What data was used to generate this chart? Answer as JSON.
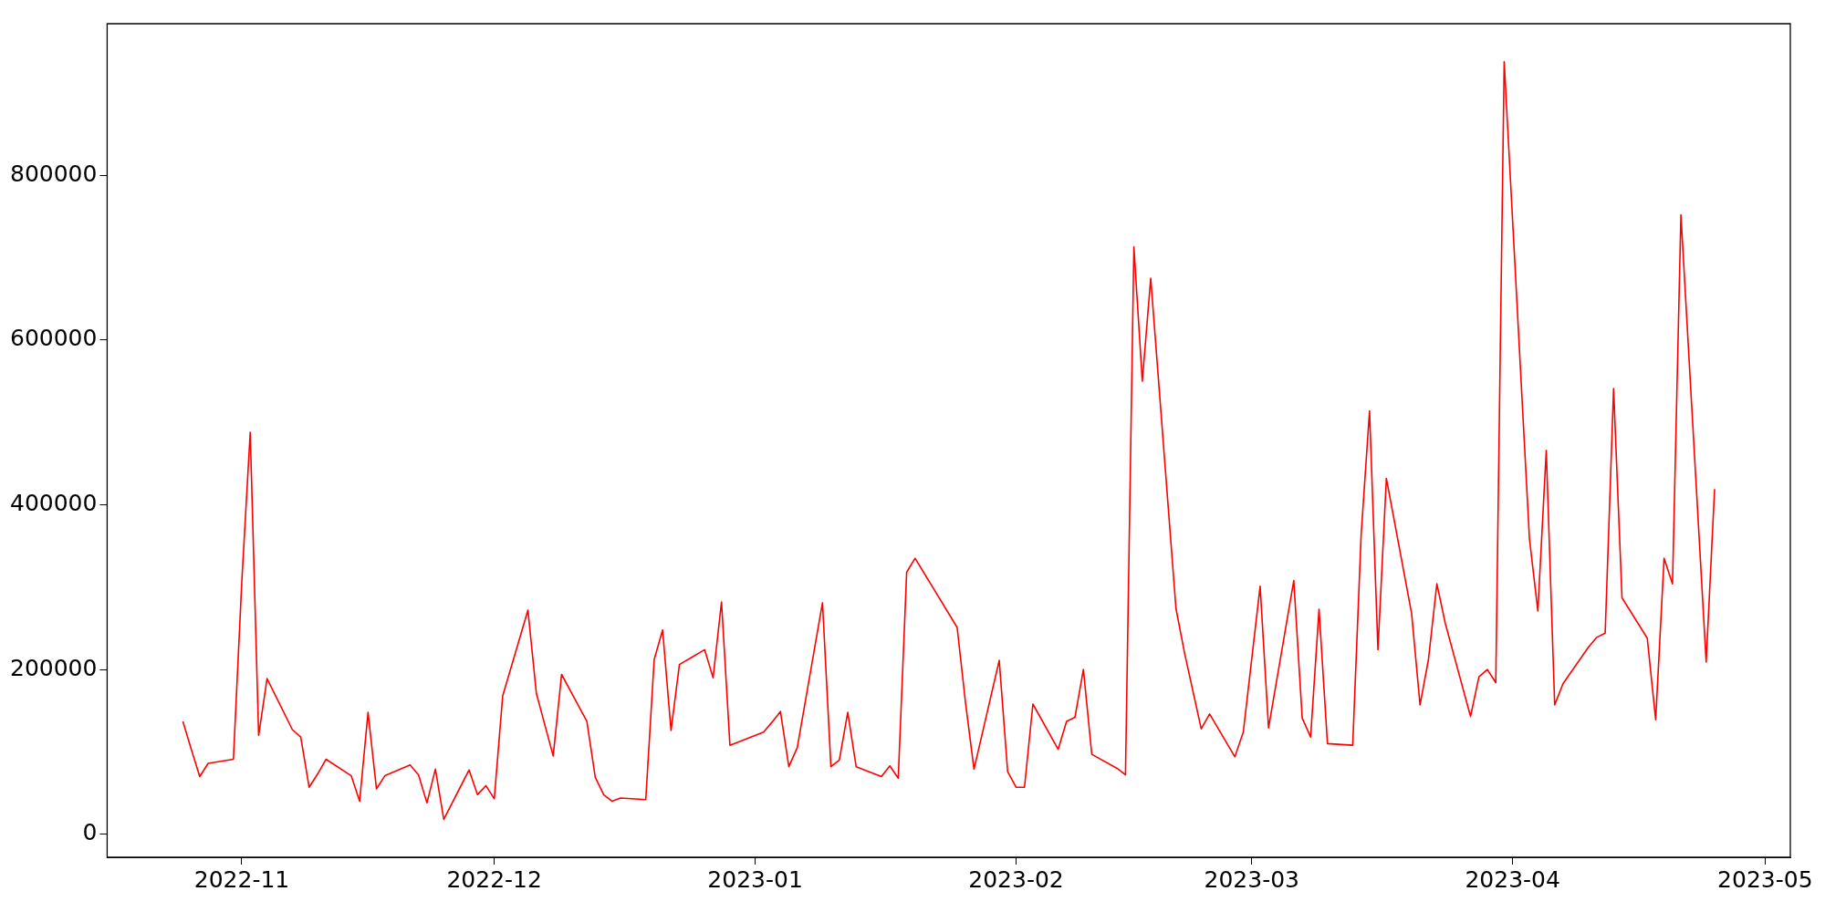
{
  "chart_data": {
    "type": "line",
    "color": "#ff0000",
    "x": [
      "2022-10-25",
      "2022-10-26",
      "2022-10-27",
      "2022-10-28",
      "2022-10-31",
      "2022-11-01",
      "2022-11-02",
      "2022-11-03",
      "2022-11-04",
      "2022-11-07",
      "2022-11-08",
      "2022-11-09",
      "2022-11-10",
      "2022-11-11",
      "2022-11-14",
      "2022-11-15",
      "2022-11-16",
      "2022-11-17",
      "2022-11-18",
      "2022-11-21",
      "2022-11-22",
      "2022-11-23",
      "2022-11-24",
      "2022-11-25",
      "2022-11-28",
      "2022-11-29",
      "2022-11-30",
      "2022-12-01",
      "2022-12-02",
      "2022-12-05",
      "2022-12-06",
      "2022-12-07",
      "2022-12-08",
      "2022-12-09",
      "2022-12-12",
      "2022-12-13",
      "2022-12-14",
      "2022-12-15",
      "2022-12-16",
      "2022-12-19",
      "2022-12-20",
      "2022-12-21",
      "2022-12-22",
      "2022-12-23",
      "2022-12-26",
      "2022-12-27",
      "2022-12-28",
      "2022-12-29",
      "2023-01-02",
      "2023-01-03",
      "2023-01-04",
      "2023-01-05",
      "2023-01-06",
      "2023-01-09",
      "2023-01-10",
      "2023-01-11",
      "2023-01-12",
      "2023-01-13",
      "2023-01-16",
      "2023-01-17",
      "2023-01-18",
      "2023-01-19",
      "2023-01-20",
      "2023-01-25",
      "2023-01-26",
      "2023-01-27",
      "2023-01-30",
      "2023-01-31",
      "2023-02-01",
      "2023-02-02",
      "2023-02-03",
      "2023-02-06",
      "2023-02-07",
      "2023-02-08",
      "2023-02-09",
      "2023-02-10",
      "2023-02-13",
      "2023-02-14",
      "2023-02-15",
      "2023-02-16",
      "2023-02-17",
      "2023-02-20",
      "2023-02-21",
      "2023-02-23",
      "2023-02-24",
      "2023-02-27",
      "2023-02-28",
      "2023-03-02",
      "2023-03-03",
      "2023-03-06",
      "2023-03-07",
      "2023-03-08",
      "2023-03-09",
      "2023-03-10",
      "2023-03-13",
      "2023-03-14",
      "2023-03-15",
      "2023-03-16",
      "2023-03-17",
      "2023-03-20",
      "2023-03-21",
      "2023-03-22",
      "2023-03-23",
      "2023-03-24",
      "2023-03-27",
      "2023-03-28",
      "2023-03-29",
      "2023-03-30",
      "2023-03-31",
      "2023-04-03",
      "2023-04-04",
      "2023-04-05",
      "2023-04-06",
      "2023-04-07",
      "2023-04-10",
      "2023-04-11",
      "2023-04-12",
      "2023-04-13",
      "2023-04-14",
      "2023-04-17",
      "2023-04-18",
      "2023-04-19",
      "2023-04-20",
      "2023-04-21",
      "2023-04-24",
      "2023-04-25"
    ],
    "values": [
      137000,
      103000,
      70000,
      86000,
      91000,
      307000,
      488000,
      120000,
      189000,
      127000,
      118000,
      57000,
      73000,
      91000,
      71000,
      40000,
      148000,
      55000,
      71000,
      84000,
      72000,
      38000,
      79000,
      18000,
      78000,
      48000,
      59000,
      43000,
      168000,
      272000,
      171000,
      133000,
      95000,
      194000,
      137000,
      69000,
      48000,
      40000,
      44000,
      42000,
      212000,
      248000,
      126000,
      206000,
      224000,
      190000,
      282000,
      108000,
      124000,
      136000,
      149000,
      82000,
      105000,
      281000,
      82000,
      90000,
      148000,
      82000,
      70000,
      83000,
      68000,
      318000,
      335000,
      251000,
      159000,
      79000,
      211000,
      76000,
      57000,
      57000,
      158000,
      103000,
      137000,
      142000,
      200000,
      97000,
      80000,
      72000,
      713000,
      550000,
      675000,
      274000,
      221000,
      128000,
      146000,
      94000,
      124000,
      301000,
      129000,
      308000,
      141000,
      118000,
      273000,
      110000,
      108000,
      363000,
      514000,
      224000,
      432000,
      268000,
      157000,
      212000,
      304000,
      256000,
      143000,
      191000,
      200000,
      184000,
      938000,
      359000,
      271000,
      466000,
      157000,
      183000,
      227000,
      239000,
      244000,
      541000,
      287000,
      238000,
      139000,
      335000,
      304000,
      752000,
      209000,
      419000
    ],
    "xlim": [
      "2022-10-16",
      "2023-05-04"
    ],
    "xticks": [
      "2022-11",
      "2022-12",
      "2023-01",
      "2023-02",
      "2023-03",
      "2023-04",
      "2023-05"
    ],
    "ylim": [
      -28000,
      984000
    ],
    "yticks": [
      0,
      200000,
      400000,
      600000,
      800000
    ],
    "grid": false,
    "legend": false,
    "marker": "none",
    "line_style": "solid"
  }
}
